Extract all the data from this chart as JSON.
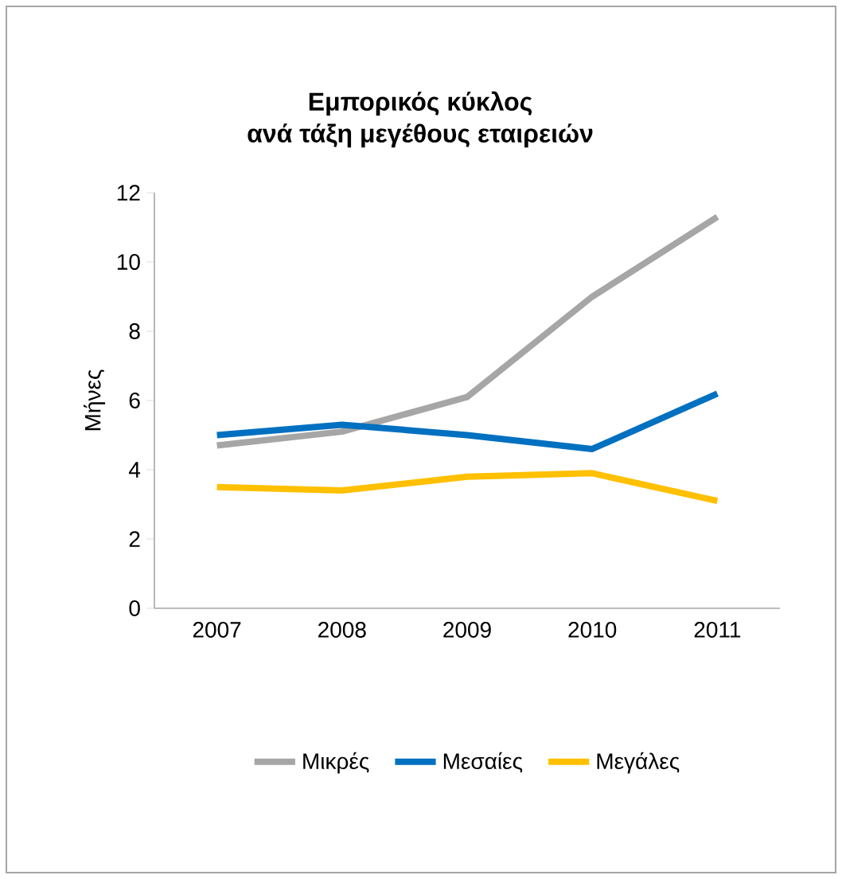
{
  "chart_data": {
    "type": "line",
    "title": "Εμπορικός κύκλος\nανά τάξη μεγέθους εταιρειών",
    "ylabel": "Μήνες",
    "categories": [
      "2007",
      "2008",
      "2009",
      "2010",
      "2011"
    ],
    "series": [
      {
        "name": "Μικρές",
        "color": "#a6a6a6",
        "values": [
          4.7,
          5.1,
          6.1,
          9.0,
          11.3
        ]
      },
      {
        "name": "Μεσαίες",
        "color": "#0070c0",
        "values": [
          5.0,
          5.3,
          5.0,
          4.6,
          6.2
        ]
      },
      {
        "name": "Μεγάλες",
        "color": "#ffc000",
        "values": [
          3.5,
          3.4,
          3.8,
          3.9,
          3.1
        ]
      }
    ],
    "ylim": [
      0,
      12
    ],
    "yticks": [
      0,
      2,
      4,
      6,
      8,
      10,
      12
    ],
    "grid": false,
    "legend": "bottom",
    "marker": "none",
    "line_style": "solid"
  }
}
